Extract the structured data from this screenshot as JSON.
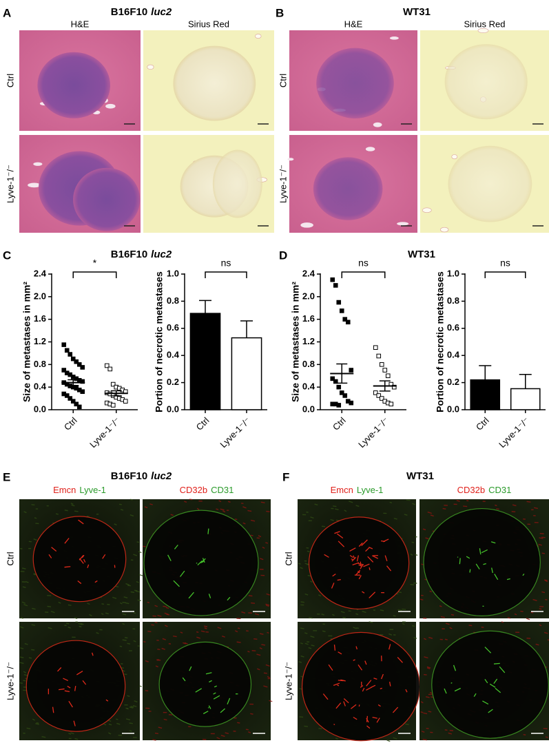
{
  "panels": [
    {
      "label": "A",
      "title": "B16F10",
      "title_italic": "luc2",
      "columns": [
        "H&E",
        "Sirius Red"
      ],
      "rows": [
        "Ctrl",
        "Lyve-1⁻/⁻"
      ]
    },
    {
      "label": "B",
      "title": "WT31",
      "columns": [
        "H&E",
        "Sirius Red"
      ],
      "rows": [
        "Ctrl",
        "Lyve-1⁻/⁻"
      ]
    },
    {
      "label": "C",
      "title": "B16F10",
      "title_italic": "luc2"
    },
    {
      "label": "D",
      "title": "WT31"
    },
    {
      "label": "E",
      "title": "B16F10",
      "title_italic": "luc2",
      "columns": [
        [
          "Emcn",
          "Lyve-1"
        ],
        [
          "CD32b",
          "CD31"
        ]
      ],
      "rows": [
        "Ctrl",
        "Lyve-1⁻/⁻"
      ]
    },
    {
      "label": "F",
      "title": "WT31",
      "columns": [
        [
          "Emcn",
          "Lyve-1"
        ],
        [
          "CD32b",
          "CD31"
        ]
      ],
      "rows": [
        "Ctrl",
        "Lyve-1⁻/⁻"
      ]
    }
  ],
  "chart_data": [
    {
      "type": "dot",
      "ylabel": "Size of metastases in mm²",
      "categories": [
        "Ctrl",
        "Lyve-1⁻/⁻"
      ],
      "points": [
        [
          1.15,
          1.05,
          0.98,
          0.9,
          0.85,
          0.8,
          0.75,
          0.7,
          0.65,
          0.62,
          0.58,
          0.55,
          0.52,
          0.5,
          0.48,
          0.45,
          0.42,
          0.4,
          0.38,
          0.35,
          0.32,
          0.28,
          0.25,
          0.2,
          0.15,
          0.1,
          0.05
        ],
        [
          0.78,
          0.72,
          0.45,
          0.4,
          0.38,
          0.35,
          0.32,
          0.3,
          0.28,
          0.25,
          0.22,
          0.2,
          0.18,
          0.15,
          0.12,
          0.1,
          0.08
        ]
      ],
      "mean": [
        0.48,
        0.29
      ],
      "sem": [
        0.05,
        0.045
      ],
      "markers": [
        "filled",
        "open"
      ],
      "ylim": [
        0,
        2.4
      ],
      "yticks": [
        {
          "value": 0,
          "label": "0.0"
        },
        0.4,
        0.8,
        1.2,
        1.6,
        {
          "value": 2,
          "label": "2.0"
        },
        2.4
      ],
      "annotation": "*"
    },
    {
      "type": "bar",
      "ylabel": "Portion of necrotic metastases",
      "categories": [
        "Ctrl",
        "Lyve-1⁻/⁻"
      ],
      "values": [
        0.71,
        0.53
      ],
      "errors": [
        0.095,
        0.125
      ],
      "colors": [
        "#000000",
        "#ffffff"
      ],
      "ylim": [
        0,
        1
      ],
      "yticks": [
        {
          "value": 0,
          "label": "0.0"
        },
        0.2,
        0.4,
        0.6,
        0.8,
        {
          "value": 1,
          "label": "1.0"
        }
      ],
      "annotation": "ns"
    },
    {
      "type": "dot",
      "ylabel": "Size of metastases in mm²",
      "categories": [
        "Ctrl",
        "Lyve-1⁻/⁻"
      ],
      "points": [
        [
          2.3,
          2.2,
          1.9,
          1.75,
          1.6,
          1.55,
          0.7,
          0.55,
          0.5,
          0.4,
          0.3,
          0.25,
          0.15,
          0.12,
          0.1,
          0.1,
          0.08
        ],
        [
          1.1,
          0.95,
          0.8,
          0.7,
          0.6,
          0.45,
          0.4,
          0.3,
          0.25,
          0.2,
          0.15,
          0.12,
          0.1
        ]
      ],
      "mean": [
        0.64,
        0.42
      ],
      "sem": [
        0.17,
        0.09
      ],
      "markers": [
        "filled",
        "open"
      ],
      "ylim": [
        0,
        2.4
      ],
      "yticks": [
        {
          "value": 0,
          "label": "0.0"
        },
        0.4,
        0.8,
        1.2,
        1.6,
        {
          "value": 2,
          "label": "2.0"
        },
        2.4
      ],
      "annotation": "ns"
    },
    {
      "type": "bar",
      "ylabel": "Portion of necrotic metastases",
      "categories": [
        "Ctrl",
        "Lyve-1⁻/⁻"
      ],
      "values": [
        0.22,
        0.155
      ],
      "errors": [
        0.105,
        0.105
      ],
      "colors": [
        "#000000",
        "#ffffff"
      ],
      "ylim": [
        0,
        1
      ],
      "yticks": [
        {
          "value": 0,
          "label": "0.0"
        },
        0.2,
        0.4,
        0.6,
        0.8,
        {
          "value": 1,
          "label": "1.0"
        }
      ],
      "annotation": "ns"
    }
  ]
}
